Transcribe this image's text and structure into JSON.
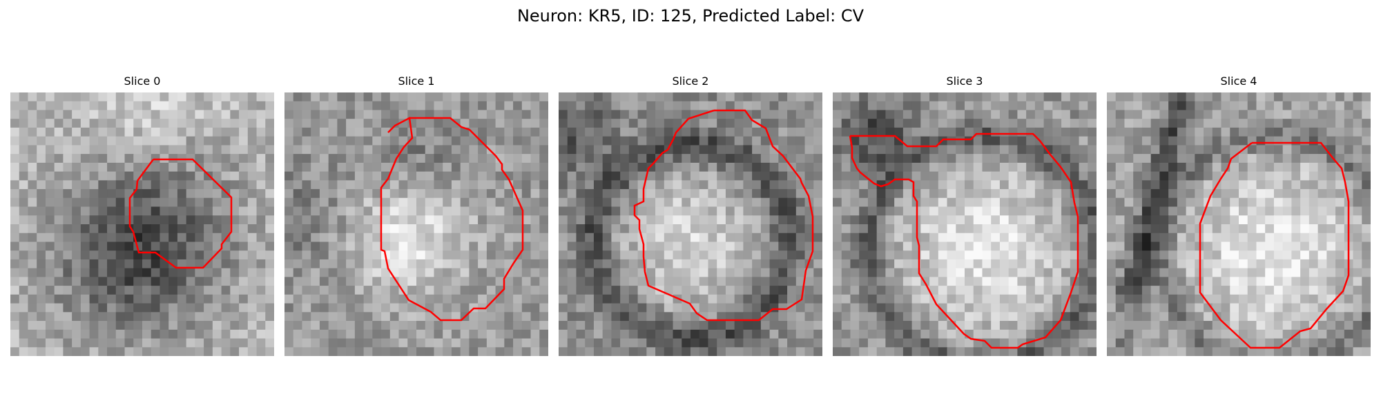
{
  "title": "Neuron: KR5, ID: 125, Predicted Label: CV",
  "panels": [
    {
      "label": "Slice 0",
      "scene": "dark-blob"
    },
    {
      "label": "Slice 1",
      "scene": "bright-center"
    },
    {
      "label": "Slice 2",
      "scene": "bright-ring"
    },
    {
      "label": "Slice 3",
      "scene": "bright-large"
    },
    {
      "label": "Slice 4",
      "scene": "bright-right"
    }
  ],
  "contour_color": "#ff0000"
}
